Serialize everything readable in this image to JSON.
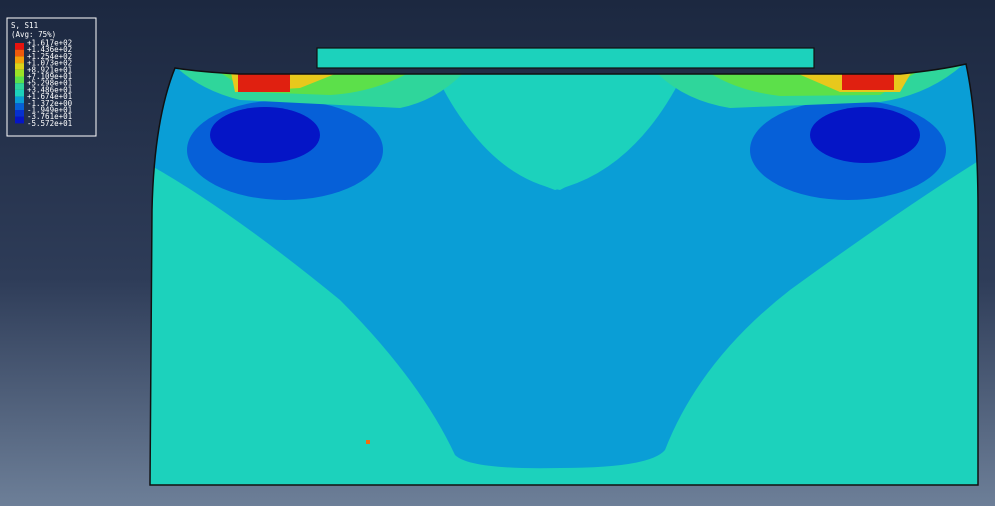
{
  "legend": {
    "title": "S, S11",
    "subtitle": "(Avg: 75%)",
    "labels": [
      "+1.617e+02",
      "+1.436e+02",
      "+1.254e+02",
      "+1.073e+02",
      "+8.921e+01",
      "+7.109e+01",
      "+5.298e+01",
      "+3.486e+01",
      "+1.674e+01",
      "-1.372e+00",
      "-1.949e+01",
      "-3.761e+01",
      "-5.572e+01"
    ]
  }
}
